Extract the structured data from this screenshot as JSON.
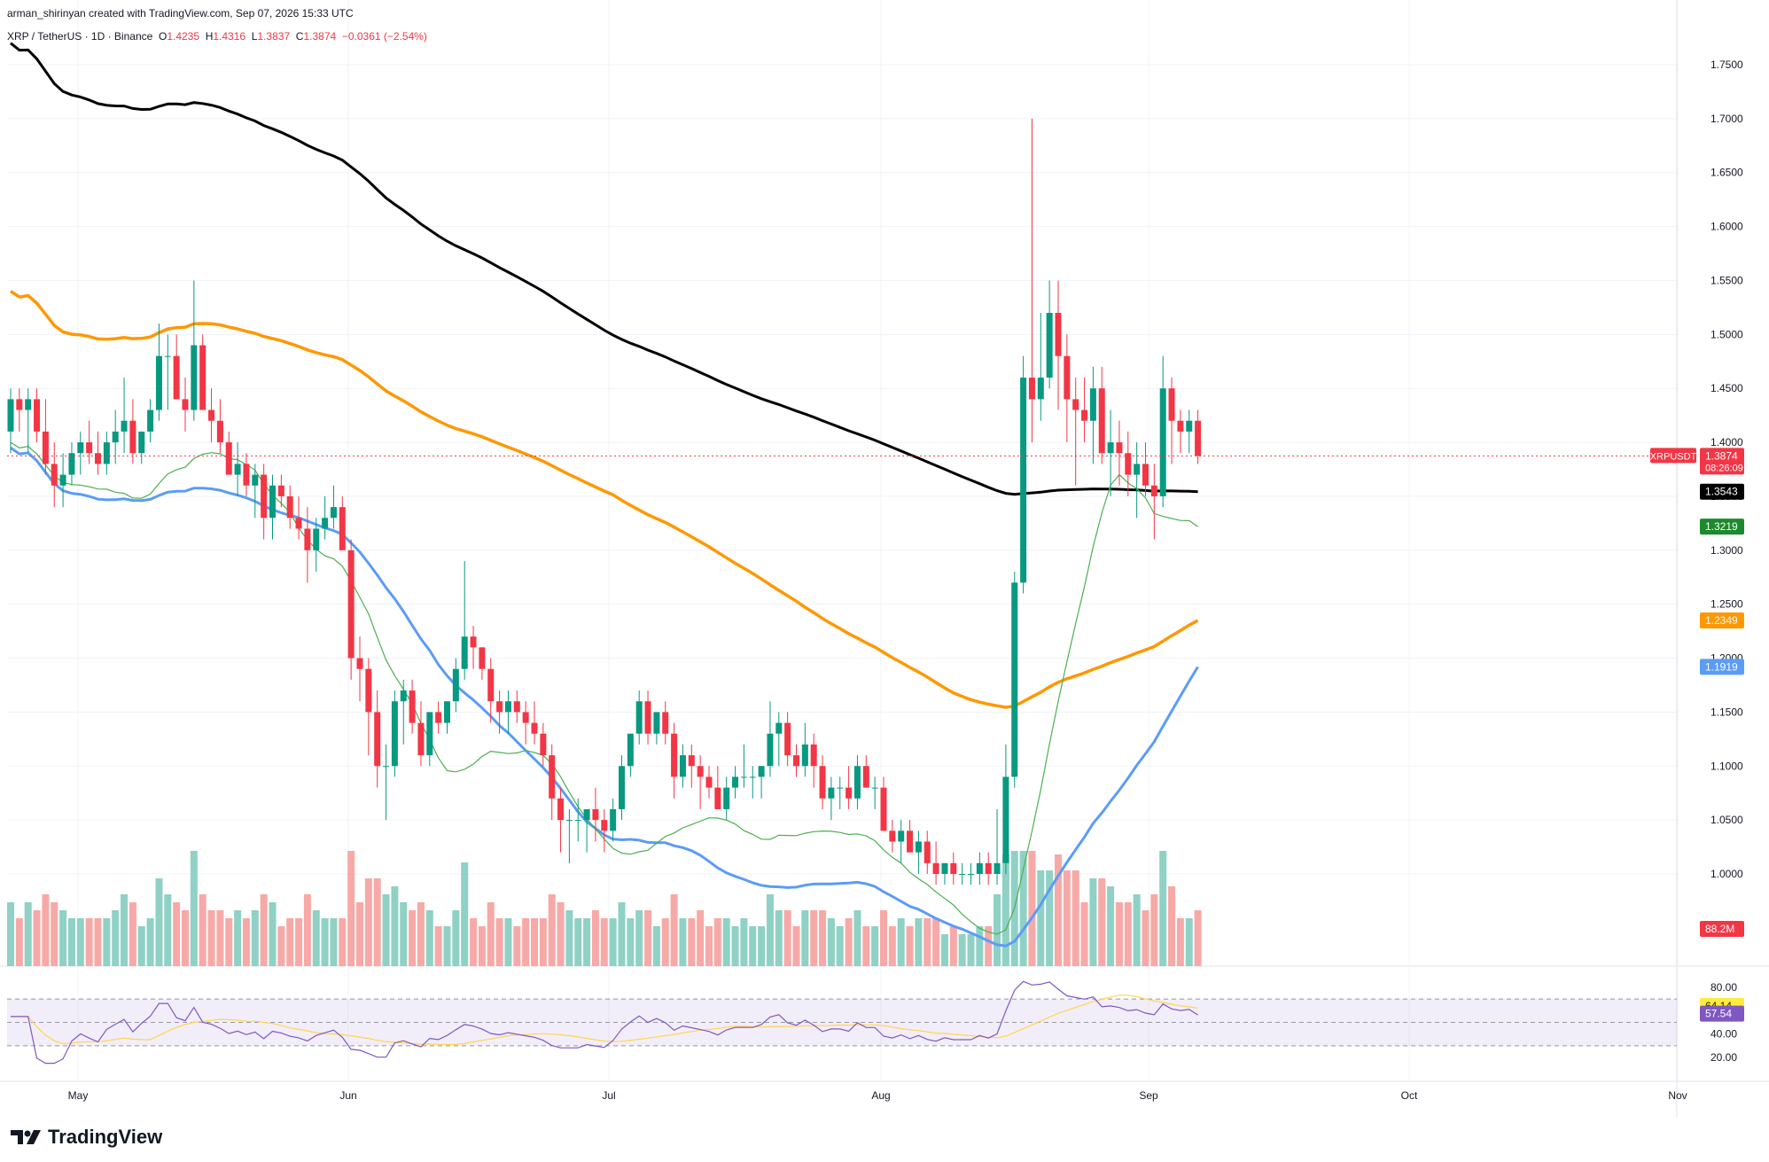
{
  "header": {
    "author_line": "arman_shirinyan created with TradingView.com, Sep 07, 2026 15:33 UTC",
    "symbol": "XRP / TetherUS · 1D · Binance",
    "o_label": "O",
    "o": "1.4235",
    "h_label": "H",
    "h": "1.4316",
    "l_label": "L",
    "l": "1.3837",
    "c_label": "C",
    "c": "1.3874",
    "change": "−0.0361 (−2.54%)"
  },
  "brand": {
    "name": "TradingView"
  },
  "colors": {
    "up": "#089981",
    "down": "#f23645",
    "vol_up": "#8fd1c5",
    "vol_down": "#f7a9a7",
    "ma_black": "#000000",
    "ma_orange": "#ff9800",
    "ma_blue": "#5b9cf6",
    "ma_green": "#4caf50",
    "rsi": "#7e57c2",
    "rsi_ma": "#ffd54f"
  },
  "price_tags": [
    {
      "text": "1.3874",
      "sub": "08:26:09",
      "name": "XRPUSDT",
      "value": 1.3874,
      "color": "#f23645"
    },
    {
      "text": "1.3543",
      "value": 1.3543,
      "color": "#000000"
    },
    {
      "text": "1.3219",
      "value": 1.3219,
      "color": "#1b8a2c"
    },
    {
      "text": "1.2349",
      "value": 1.2349,
      "color": "#ff9800"
    },
    {
      "text": "1.1919",
      "value": 1.1919,
      "color": "#5b9cf6"
    },
    {
      "text": "88.2M",
      "value": 88.2,
      "color": "#f23645",
      "pane": "volume"
    }
  ],
  "rsi_tags": [
    {
      "text": "64.14",
      "value": 64.14,
      "color": "#ffeb3b",
      "textColor": "#131722"
    },
    {
      "text": "57.54",
      "value": 57.54,
      "color": "#7e57c2",
      "textColor": "#ffffff"
    }
  ],
  "chart_data": {
    "type": "candlestick",
    "title": "XRP / TetherUS · 1D · Binance",
    "price_axis": {
      "ticks": [
        "1.7500",
        "1.7000",
        "1.6500",
        "1.6000",
        "1.5500",
        "1.5000",
        "1.4500",
        "1.4000",
        "1.3500",
        "1.3000",
        "1.2500",
        "1.2000",
        "1.1500",
        "1.1000",
        "1.0500",
        "1.0000"
      ],
      "range": [
        0.96,
        1.78
      ]
    },
    "rsi_axis": {
      "ticks": [
        "80.00",
        "40.00",
        "20.00"
      ],
      "bands": [
        30,
        50,
        70
      ],
      "range": [
        10,
        95
      ]
    },
    "time_axis": {
      "labels": [
        "May",
        "Jun",
        "Jul",
        "Aug",
        "Sep",
        "Oct",
        "Nov"
      ]
    },
    "candles_ohlc": [
      [
        1.41,
        1.45,
        1.39,
        1.44
      ],
      [
        1.44,
        1.45,
        1.41,
        1.43
      ],
      [
        1.43,
        1.45,
        1.39,
        1.44
      ],
      [
        1.44,
        1.45,
        1.4,
        1.41
      ],
      [
        1.41,
        1.44,
        1.37,
        1.38
      ],
      [
        1.38,
        1.4,
        1.34,
        1.36
      ],
      [
        1.36,
        1.39,
        1.34,
        1.37
      ],
      [
        1.37,
        1.4,
        1.36,
        1.39
      ],
      [
        1.39,
        1.41,
        1.37,
        1.4
      ],
      [
        1.4,
        1.42,
        1.38,
        1.39
      ],
      [
        1.39,
        1.41,
        1.37,
        1.38
      ],
      [
        1.38,
        1.41,
        1.37,
        1.4
      ],
      [
        1.4,
        1.43,
        1.38,
        1.41
      ],
      [
        1.41,
        1.46,
        1.39,
        1.42
      ],
      [
        1.42,
        1.44,
        1.38,
        1.39
      ],
      [
        1.39,
        1.41,
        1.38,
        1.41
      ],
      [
        1.41,
        1.44,
        1.4,
        1.43
      ],
      [
        1.43,
        1.51,
        1.42,
        1.48
      ],
      [
        1.48,
        1.5,
        1.43,
        1.48
      ],
      [
        1.48,
        1.5,
        1.44,
        1.44
      ],
      [
        1.44,
        1.46,
        1.41,
        1.43
      ],
      [
        1.43,
        1.55,
        1.42,
        1.49
      ],
      [
        1.49,
        1.5,
        1.43,
        1.43
      ],
      [
        1.43,
        1.45,
        1.4,
        1.42
      ],
      [
        1.42,
        1.44,
        1.39,
        1.4
      ],
      [
        1.4,
        1.41,
        1.37,
        1.37
      ],
      [
        1.37,
        1.4,
        1.35,
        1.38
      ],
      [
        1.38,
        1.39,
        1.35,
        1.36
      ],
      [
        1.36,
        1.38,
        1.33,
        1.37
      ],
      [
        1.37,
        1.38,
        1.31,
        1.33
      ],
      [
        1.33,
        1.37,
        1.31,
        1.36
      ],
      [
        1.36,
        1.37,
        1.34,
        1.35
      ],
      [
        1.35,
        1.36,
        1.32,
        1.33
      ],
      [
        1.33,
        1.35,
        1.31,
        1.32
      ],
      [
        1.32,
        1.34,
        1.27,
        1.3
      ],
      [
        1.3,
        1.33,
        1.28,
        1.32
      ],
      [
        1.32,
        1.35,
        1.31,
        1.33
      ],
      [
        1.33,
        1.36,
        1.32,
        1.34
      ],
      [
        1.34,
        1.35,
        1.31,
        1.3
      ],
      [
        1.3,
        1.31,
        1.18,
        1.2
      ],
      [
        1.2,
        1.22,
        1.16,
        1.19
      ],
      [
        1.19,
        1.2,
        1.11,
        1.15
      ],
      [
        1.15,
        1.17,
        1.08,
        1.1
      ],
      [
        1.1,
        1.12,
        1.05,
        1.1
      ],
      [
        1.1,
        1.17,
        1.09,
        1.16
      ],
      [
        1.16,
        1.18,
        1.12,
        1.17
      ],
      [
        1.17,
        1.18,
        1.13,
        1.14
      ],
      [
        1.14,
        1.16,
        1.1,
        1.11
      ],
      [
        1.11,
        1.15,
        1.1,
        1.15
      ],
      [
        1.15,
        1.16,
        1.13,
        1.14
      ],
      [
        1.14,
        1.16,
        1.13,
        1.16
      ],
      [
        1.16,
        1.2,
        1.15,
        1.19
      ],
      [
        1.19,
        1.29,
        1.18,
        1.22
      ],
      [
        1.22,
        1.23,
        1.19,
        1.21
      ],
      [
        1.21,
        1.21,
        1.18,
        1.19
      ],
      [
        1.19,
        1.2,
        1.14,
        1.16
      ],
      [
        1.16,
        1.17,
        1.13,
        1.15
      ],
      [
        1.15,
        1.17,
        1.13,
        1.16
      ],
      [
        1.16,
        1.17,
        1.14,
        1.15
      ],
      [
        1.15,
        1.16,
        1.12,
        1.14
      ],
      [
        1.14,
        1.16,
        1.12,
        1.13
      ],
      [
        1.13,
        1.14,
        1.1,
        1.11
      ],
      [
        1.11,
        1.12,
        1.05,
        1.07
      ],
      [
        1.07,
        1.08,
        1.02,
        1.05
      ],
      [
        1.05,
        1.06,
        1.01,
        1.05
      ],
      [
        1.05,
        1.07,
        1.03,
        1.05
      ],
      [
        1.05,
        1.06,
        1.02,
        1.06
      ],
      [
        1.06,
        1.08,
        1.03,
        1.05
      ],
      [
        1.05,
        1.06,
        1.02,
        1.04
      ],
      [
        1.04,
        1.07,
        1.03,
        1.06
      ],
      [
        1.06,
        1.11,
        1.05,
        1.1
      ],
      [
        1.1,
        1.13,
        1.09,
        1.13
      ],
      [
        1.13,
        1.17,
        1.12,
        1.16
      ],
      [
        1.16,
        1.17,
        1.12,
        1.13
      ],
      [
        1.13,
        1.15,
        1.12,
        1.15
      ],
      [
        1.15,
        1.16,
        1.12,
        1.13
      ],
      [
        1.13,
        1.14,
        1.07,
        1.09
      ],
      [
        1.09,
        1.12,
        1.08,
        1.11
      ],
      [
        1.11,
        1.12,
        1.08,
        1.1
      ],
      [
        1.1,
        1.11,
        1.06,
        1.09
      ],
      [
        1.09,
        1.1,
        1.07,
        1.08
      ],
      [
        1.08,
        1.1,
        1.06,
        1.06
      ],
      [
        1.06,
        1.09,
        1.05,
        1.08
      ],
      [
        1.08,
        1.1,
        1.07,
        1.09
      ],
      [
        1.09,
        1.12,
        1.08,
        1.09
      ],
      [
        1.09,
        1.1,
        1.07,
        1.09
      ],
      [
        1.09,
        1.1,
        1.07,
        1.1
      ],
      [
        1.1,
        1.16,
        1.09,
        1.13
      ],
      [
        1.13,
        1.15,
        1.1,
        1.14
      ],
      [
        1.14,
        1.15,
        1.1,
        1.11
      ],
      [
        1.11,
        1.12,
        1.09,
        1.1
      ],
      [
        1.1,
        1.14,
        1.09,
        1.12
      ],
      [
        1.12,
        1.13,
        1.08,
        1.1
      ],
      [
        1.1,
        1.11,
        1.06,
        1.07
      ],
      [
        1.07,
        1.09,
        1.05,
        1.08
      ],
      [
        1.08,
        1.09,
        1.06,
        1.08
      ],
      [
        1.08,
        1.1,
        1.06,
        1.07
      ],
      [
        1.07,
        1.11,
        1.06,
        1.1
      ],
      [
        1.1,
        1.11,
        1.08,
        1.08
      ],
      [
        1.08,
        1.09,
        1.06,
        1.08
      ],
      [
        1.08,
        1.09,
        1.04,
        1.04
      ],
      [
        1.04,
        1.05,
        1.02,
        1.03
      ],
      [
        1.03,
        1.05,
        1.01,
        1.04
      ],
      [
        1.04,
        1.05,
        1.02,
        1.02
      ],
      [
        1.02,
        1.04,
        1.0,
        1.03
      ],
      [
        1.03,
        1.04,
        1.0,
        1.01
      ],
      [
        1.01,
        1.03,
        0.99,
        1.0
      ],
      [
        1.0,
        1.01,
        0.99,
        1.01
      ],
      [
        1.01,
        1.02,
        0.99,
        1.0
      ],
      [
        1.0,
        1.01,
        0.99,
        1.0
      ],
      [
        1.0,
        1.01,
        0.99,
        1.0
      ],
      [
        1.0,
        1.02,
        0.99,
        1.01
      ],
      [
        1.01,
        1.02,
        0.99,
        1.0
      ],
      [
        1.0,
        1.06,
        0.99,
        1.01
      ],
      [
        1.01,
        1.12,
        1.0,
        1.09
      ],
      [
        1.09,
        1.28,
        1.08,
        1.27
      ],
      [
        1.27,
        1.48,
        1.26,
        1.46
      ],
      [
        1.46,
        1.7,
        1.4,
        1.44
      ],
      [
        1.44,
        1.52,
        1.42,
        1.46
      ],
      [
        1.46,
        1.55,
        1.45,
        1.52
      ],
      [
        1.52,
        1.55,
        1.43,
        1.48
      ],
      [
        1.48,
        1.5,
        1.4,
        1.44
      ],
      [
        1.44,
        1.46,
        1.36,
        1.43
      ],
      [
        1.43,
        1.46,
        1.4,
        1.42
      ],
      [
        1.42,
        1.47,
        1.38,
        1.45
      ],
      [
        1.45,
        1.47,
        1.38,
        1.39
      ],
      [
        1.39,
        1.43,
        1.35,
        1.4
      ],
      [
        1.4,
        1.42,
        1.36,
        1.39
      ],
      [
        1.39,
        1.41,
        1.35,
        1.37
      ],
      [
        1.37,
        1.4,
        1.33,
        1.38
      ],
      [
        1.38,
        1.4,
        1.35,
        1.36
      ],
      [
        1.36,
        1.38,
        1.31,
        1.35
      ],
      [
        1.35,
        1.48,
        1.34,
        1.45
      ],
      [
        1.45,
        1.46,
        1.38,
        1.42
      ],
      [
        1.42,
        1.43,
        1.39,
        1.41
      ],
      [
        1.41,
        1.43,
        1.39,
        1.42
      ],
      [
        1.42,
        1.43,
        1.38,
        1.3874
      ]
    ],
    "ma_series_end_values": {
      "black": 1.3543,
      "green": 1.3219,
      "orange": 1.2349,
      "blue": 1.1919
    },
    "volume_last": "88.2M",
    "rsi_last": 57.54,
    "rsi_ma_last": 64.14
  }
}
